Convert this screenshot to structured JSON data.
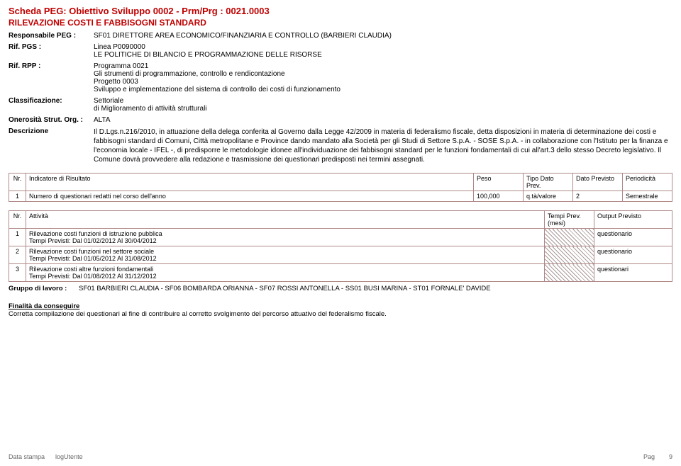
{
  "header": {
    "title": "Scheda PEG: Obiettivo Sviluppo 0002 - Prm/Prg : 0021.0003",
    "subtitle": "RILEVAZIONE COSTI E FABBISOGNI STANDARD"
  },
  "meta": {
    "responsabile_label": "Responsabile PEG :",
    "responsabile_value": "SF01   DIRETTORE AREA ECONOMICO/FINANZIARIA E CONTROLLO (BARBIERI CLAUDIA)",
    "pgs_label": "Rif. PGS :",
    "pgs_line1": "Linea P0090000",
    "pgs_line2": "LE POLITICHE DI BILANCIO E PROGRAMMAZIONE DELLE RISORSE",
    "rpp_label": "Rif. RPP :",
    "rpp_line1": "Programma 0021",
    "rpp_line2": "Gli strumenti di programmazione, controllo e rendicontazione",
    "rpp_line3": "Progetto 0003",
    "rpp_line4": "Sviluppo e implementazione del sistema di controllo dei costi di funzionamento",
    "class_label": "Classificazione:",
    "class_line1": "Settoriale",
    "class_line2": "di Miglioramento di attività strutturali",
    "onerosita_label": "Onerosità Strut. Org. :",
    "onerosita_value": "ALTA",
    "descrizione_label": "Descrizione",
    "descrizione_value": "Il D.Lgs.n.216/2010, in attuazione della delega conferita al Governo dalla Legge 42/2009 in materia di federalismo fiscale, detta disposizioni in materia di determinazione dei costi e fabbisogni standard di Comuni, Città metropolitane e Province dando mandato alla Società per gli Studi di Settore S.p.A. - SOSE S.p.A. - in collaborazione con l'Istituto per la finanza e l'economia locale - IFEL -, di predisporre le metodologie idonee all'individuazione dei fabbisogni standard per le funzioni fondamentali di cui all'art.3 dello stesso Decreto legislativo. Il Comune dovrà provvedere alla redazione e trasmissione dei questionari predisposti nei termini assegnati."
  },
  "t1": {
    "h_nr": "Nr.",
    "h_ind": "Indicatore di Risultato",
    "h_peso": "Peso",
    "h_tipo": "Tipo Dato Prev.",
    "h_dato": "Dato Previsto",
    "h_per": "Periodicità",
    "r1_nr": "1",
    "r1_ind": "Numero di questionari redatti nel corso dell'anno",
    "r1_peso": "100,000",
    "r1_tipo": "q.tà/valore",
    "r1_dato": "2",
    "r1_per": "Semestrale"
  },
  "t2": {
    "h_nr": "Nr.",
    "h_att": "Attività",
    "h_tempi": "Tempi Prev.(mesi)",
    "h_out": "Output Previsto",
    "r1_nr": "1",
    "r1_l1": "Rilevazione costi funzioni di istruzione pubblica",
    "r1_l2": "Tempi Previsti:   Dal 01/02/2012   Al 30/04/2012",
    "r1_out": "questionario",
    "r2_nr": "2",
    "r2_l1": "Rilevazione costi funzioni nel settore sociale",
    "r2_l2": "Tempi Previsti:   Dal 01/05/2012   Al 31/08/2012",
    "r2_out": "questionario",
    "r3_nr": "3",
    "r3_l1": "Rilevazione costi altre funzioni fondamentali",
    "r3_l2": "Tempi Previsti:   Dal 01/08/2012   Al 31/12/2012",
    "r3_out": "questionari"
  },
  "gruppo": {
    "label": "Gruppo di lavoro :",
    "value": "SF01 BARBIERI CLAUDIA - SF06 BOMBARDA ORIANNA - SF07 ROSSI ANTONELLA - SS01 BUSI MARINA - ST01 FORNALE' DAVIDE"
  },
  "finalita": {
    "heading": "Finalità da conseguire",
    "text": "Corretta compilazione dei questionari al fine di contribuire al corretto svolgimento del percorso attuativo del federalismo fiscale."
  },
  "footer": {
    "left1": "Data stampa",
    "left2": "logUtente",
    "right_label": "Pag",
    "right_num": "9"
  }
}
